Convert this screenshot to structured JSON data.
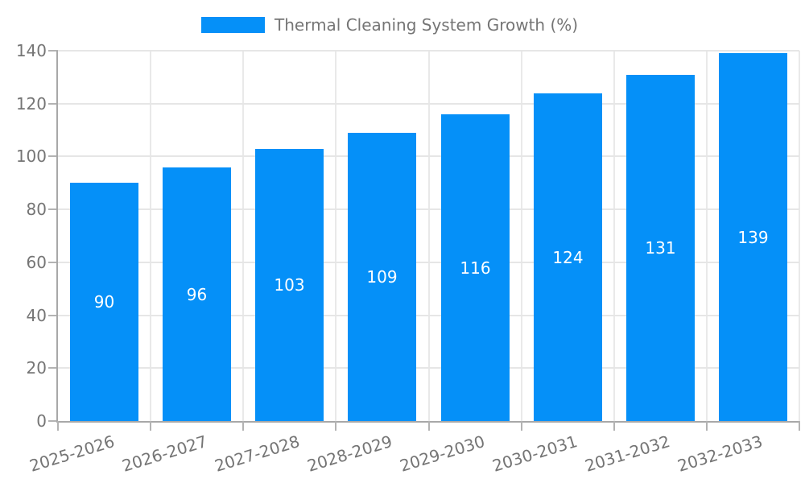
{
  "legend": {
    "label": "Thermal Cleaning System Growth (%)"
  },
  "chart_data": {
    "type": "bar",
    "title": "Thermal Cleaning System Growth (%)",
    "categories": [
      "2025-2026",
      "2026-2027",
      "2027-2028",
      "2028-2029",
      "2029-2030",
      "2030-2031",
      "2031-2032",
      "2032-2033"
    ],
    "values": [
      90,
      96,
      103,
      109,
      116,
      124,
      131,
      139
    ],
    "xlabel": "",
    "ylabel": "",
    "ylim": [
      0,
      140
    ],
    "yticks": [
      0,
      20,
      40,
      60,
      80,
      100,
      120,
      140
    ],
    "grid": true,
    "legend_position": "top-center",
    "value_label_position": "inside-center",
    "x_tick_rotation_deg": -17,
    "colors": {
      "bar": "#0590f8",
      "axis_text": "#757575",
      "value_text": "#ffffff",
      "grid_line": "#e6e6e6",
      "grid_line_vertical": "#e9e9e9",
      "axis_line": "#a8a8a8",
      "tick_mark": "#b3b3b3",
      "background": "#ffffff"
    }
  }
}
